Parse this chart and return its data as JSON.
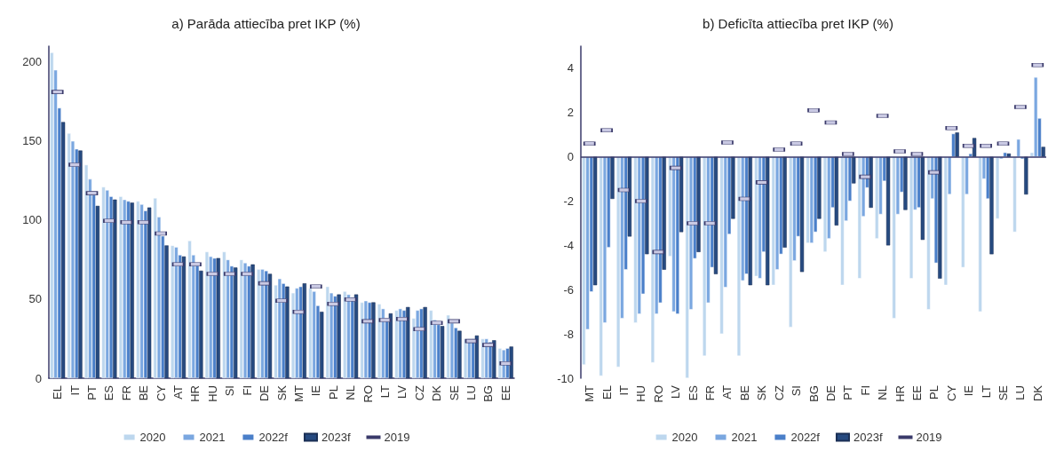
{
  "chart_data": [
    {
      "type": "bar",
      "title": "a) Parāda attiecība pret IKP (%)",
      "categories": [
        "EL",
        "IT",
        "PT",
        "ES",
        "FR",
        "BE",
        "CY",
        "AT",
        "HR",
        "HU",
        "SI",
        "FI",
        "DE",
        "SK",
        "MT",
        "IE",
        "PL",
        "NL",
        "RO",
        "LT",
        "LV",
        "CZ",
        "DK",
        "SE",
        "LU",
        "BG",
        "EE"
      ],
      "ylim": [
        0,
        210
      ],
      "yticks": [
        0,
        50,
        100,
        150,
        200
      ],
      "grid": false,
      "legend": "bottom",
      "series": [
        {
          "name": "2020",
          "color": "#bdd7ee",
          "values": [
            206,
            155,
            135,
            121,
            115,
            112,
            114,
            84,
            87,
            80,
            80,
            75,
            69,
            59,
            54,
            57,
            58,
            55,
            48,
            47,
            43,
            38,
            43,
            40,
            25,
            25,
            19
          ]
        },
        {
          "name": "2021",
          "color": "#7aa7e0",
          "values": [
            195,
            150,
            126,
            119,
            113,
            110,
            102,
            83,
            78,
            77,
            75,
            73,
            69,
            63,
            57,
            55,
            54,
            53,
            49,
            44,
            44,
            43,
            37,
            35,
            25,
            25,
            18
          ]
        },
        {
          "name": "2022f",
          "color": "#4a7fc9",
          "values": [
            171,
            145,
            116,
            115,
            112,
            106,
            90,
            78,
            72,
            76,
            71,
            71,
            68,
            60,
            58,
            46,
            52,
            51.3,
            48,
            38.1,
            43,
            44,
            34,
            32,
            25,
            23,
            19
          ]
        },
        {
          "name": "2023f",
          "color": "#264a80",
          "values": [
            162,
            144,
            109,
            113,
            111,
            108,
            84,
            77,
            68,
            76,
            70,
            72,
            66,
            58,
            60,
            42,
            53,
            53,
            48,
            41,
            45,
            45,
            33,
            30,
            27,
            24,
            20
          ]
        },
        {
          "name": "2019",
          "type": "scatter",
          "marker": "square",
          "color": "#c9c9e3",
          "values": [
            181,
            135,
            117,
            99.5,
            98.7,
            98.7,
            91.5,
            72,
            72,
            66,
            66,
            66,
            60,
            49,
            42,
            58,
            47,
            49.8,
            36,
            36.8,
            37.5,
            31,
            35,
            36,
            23.5,
            21,
            9.4
          ]
        }
      ]
    },
    {
      "type": "bar",
      "title": "b) Deficīta attiecība pret IKP (%)",
      "categories": [
        "MT",
        "EL",
        "IT",
        "HU",
        "RO",
        "LV",
        "ES",
        "FR",
        "AT",
        "BE",
        "SK",
        "CZ",
        "SI",
        "BG",
        "DE",
        "PT",
        "FI",
        "NL",
        "HR",
        "EE",
        "PL",
        "CY",
        "IE",
        "LT",
        "SE",
        "LU",
        "DK"
      ],
      "ylim": [
        -10,
        5
      ],
      "yticks": [
        -10,
        -8,
        -6,
        -4,
        -2,
        0,
        2,
        4
      ],
      "grid": false,
      "ref_lines": [
        {
          "axis": "y",
          "value": 0,
          "color": "#3a3a6a"
        }
      ],
      "legend": "bottom",
      "series": [
        {
          "name": "2020",
          "color": "#bdd7ee",
          "values": [
            -9.4,
            -9.9,
            -9.5,
            -7.5,
            -9.3,
            -4.5,
            -10,
            -9,
            -8,
            -9,
            -5.4,
            -5.8,
            -7.7,
            -3.9,
            -4.3,
            -5.8,
            -5.5,
            -3.7,
            -7.3,
            -5.5,
            -6.9,
            -5.8,
            -5,
            -7,
            -2.8,
            -3.4,
            0.2
          ]
        },
        {
          "name": "2021",
          "color": "#7aa7e0",
          "values": [
            -7.8,
            -7.5,
            -7.3,
            -7.1,
            -7.1,
            -7,
            -6.9,
            -6.6,
            -5.9,
            -5.6,
            -5.5,
            -5.1,
            -4.7,
            -3.9,
            -3.7,
            -2.9,
            -2.7,
            -2.6,
            -2.6,
            -2.4,
            -1.9,
            -1.7,
            -1.7,
            -1,
            -0.1,
            0.8,
            3.6
          ]
        },
        {
          "name": "2022f",
          "color": "#4a7fc9",
          "values": [
            -6.1,
            -4.1,
            -5.1,
            -6.2,
            -6.6,
            -7.1,
            -4.6,
            -5,
            -3.5,
            -5.3,
            -4.3,
            -4.4,
            -3.6,
            -3.4,
            -2.3,
            -2,
            -1.4,
            -1.1,
            -1.6,
            -2.3,
            -4.8,
            1.05,
            0.15,
            -1.9,
            0.2,
            -0.1,
            1.75
          ]
        },
        {
          "name": "2023f",
          "color": "#264a80",
          "values": [
            -5.8,
            -1.9,
            -3.6,
            -4.4,
            -5.1,
            -3.4,
            -4.3,
            -5.3,
            -2.8,
            -5.8,
            -5.8,
            -4.1,
            -5.2,
            -2.8,
            -3.1,
            -1.2,
            -2.3,
            -4,
            -2.4,
            -3.75,
            -5.5,
            1.1,
            0.85,
            -4.4,
            0.15,
            -1.7,
            0.45
          ]
        },
        {
          "name": "2019",
          "type": "scatter",
          "marker": "square",
          "color": "#c9c9e3",
          "values": [
            0.6,
            1.2,
            -1.5,
            -2,
            -4.3,
            -0.5,
            -3,
            -3,
            0.65,
            -1.9,
            -1.15,
            0.33,
            0.6,
            2.1,
            1.55,
            0.13,
            -0.9,
            1.85,
            0.25,
            0.13,
            -0.7,
            1.3,
            0.5,
            0.5,
            0.6,
            2.25,
            4.15
          ]
        }
      ]
    }
  ]
}
